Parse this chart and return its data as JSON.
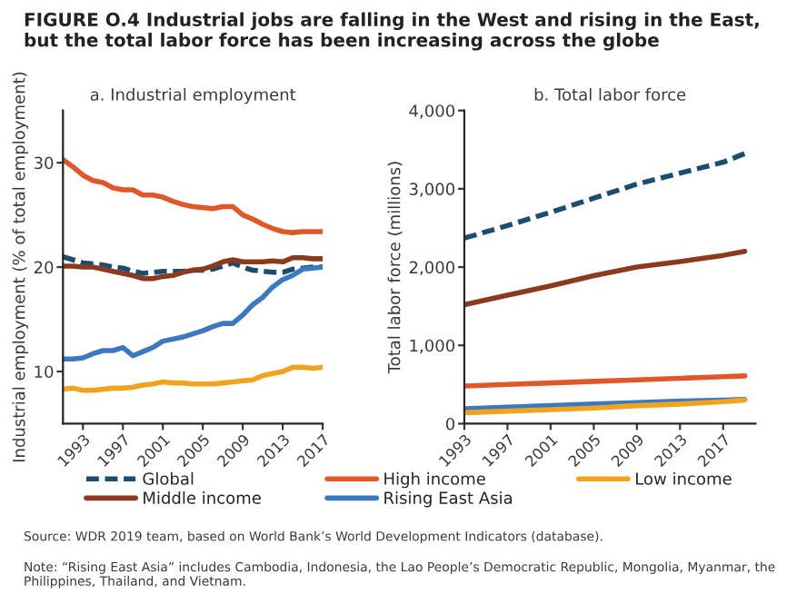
{
  "chart_data": [
    {
      "type": "line",
      "title": "FIGURE O.4 Industrial jobs are falling in the West and rising in the East, but the total labor force has been increasing across the globe",
      "subtitle": "a. Industrial employment",
      "ylabel": "Industrial employment (% of total employment)",
      "x": [
        1991,
        1992,
        1993,
        1994,
        1995,
        1996,
        1997,
        1998,
        1999,
        2000,
        2001,
        2002,
        2003,
        2004,
        2005,
        2006,
        2007,
        2008,
        2009,
        2010,
        2011,
        2012,
        2013,
        2014,
        2015,
        2016,
        2017
      ],
      "xlim": [
        1991,
        2017
      ],
      "xticks": [
        1993,
        1997,
        2001,
        2005,
        2009,
        2013,
        2017
      ],
      "ylim": [
        5,
        35
      ],
      "yticks": [
        10,
        20,
        30
      ],
      "grid": false,
      "legend": "bottom",
      "series": [
        {
          "name": "Global",
          "color": "#1a4e6e",
          "line_style": "dashed",
          "values": [
            21.0,
            20.7,
            20.4,
            20.3,
            20.2,
            20.0,
            19.9,
            19.6,
            19.4,
            19.5,
            19.6,
            19.6,
            19.6,
            19.7,
            19.7,
            19.8,
            20.1,
            20.4,
            20.0,
            19.7,
            19.6,
            19.5,
            19.5,
            19.8,
            19.9,
            20.0,
            20.0
          ]
        },
        {
          "name": "Middle income",
          "color": "#8b3a1e",
          "values": [
            20.1,
            20.1,
            20.0,
            20.0,
            19.8,
            19.6,
            19.4,
            19.2,
            18.9,
            18.9,
            19.1,
            19.2,
            19.5,
            19.7,
            19.8,
            20.1,
            20.5,
            20.7,
            20.5,
            20.5,
            20.5,
            20.6,
            20.5,
            20.9,
            20.9,
            20.8,
            20.8
          ]
        },
        {
          "name": "High income",
          "color": "#e0572a",
          "values": [
            30.3,
            29.6,
            28.8,
            28.3,
            28.1,
            27.6,
            27.4,
            27.4,
            26.9,
            26.9,
            26.7,
            26.3,
            26.0,
            25.8,
            25.7,
            25.6,
            25.8,
            25.8,
            25.0,
            24.6,
            24.1,
            23.7,
            23.4,
            23.3,
            23.4,
            23.4,
            23.4
          ]
        },
        {
          "name": "Rising East Asia",
          "color": "#3b78c2",
          "values": [
            11.2,
            11.2,
            11.3,
            11.7,
            12.0,
            12.0,
            12.3,
            11.5,
            11.9,
            12.3,
            12.9,
            13.1,
            13.3,
            13.6,
            13.9,
            14.3,
            14.6,
            14.6,
            15.4,
            16.4,
            17.1,
            18.1,
            18.8,
            19.2,
            19.8,
            19.9,
            20.0
          ]
        },
        {
          "name": "Low income",
          "color": "#f0a31c",
          "values": [
            8.3,
            8.4,
            8.2,
            8.2,
            8.3,
            8.4,
            8.4,
            8.5,
            8.7,
            8.8,
            9.0,
            8.9,
            8.9,
            8.8,
            8.8,
            8.8,
            8.9,
            9.0,
            9.1,
            9.2,
            9.6,
            9.8,
            10.0,
            10.4,
            10.4,
            10.3,
            10.4
          ]
        }
      ],
      "annotations": [
        "Source: WDR 2019 team, based on World Bank’s World Development Indicators (database).",
        "Note: “Rising East Asia” includes Cambodia, Indonesia, the Lao People’s Democratic Republic, Mongolia, Myanmar, the Philippines, Thailand, and Vietnam."
      ]
    },
    {
      "type": "line",
      "subtitle": "b. Total labor force",
      "ylabel": "Total labor force (millions)",
      "x": [
        1993,
        1997,
        2001,
        2005,
        2009,
        2013,
        2017,
        2019
      ],
      "xlim": [
        1993,
        2020
      ],
      "xticks": [
        1993,
        1997,
        2001,
        2005,
        2009,
        2013,
        2017
      ],
      "ylim": [
        0,
        4000
      ],
      "yticks": [
        {
          "value": 0,
          "label": "0"
        },
        {
          "value": 1000,
          "label": "1,000"
        },
        {
          "value": 2000,
          "label": "2,000"
        },
        {
          "value": 3000,
          "label": "3,000"
        },
        {
          "value": 4000,
          "label": "4,000"
        }
      ],
      "grid": false,
      "series": [
        {
          "color": "#1a4e6e",
          "line_style": "dashed",
          "values": [
            2370,
            2530,
            2700,
            2880,
            3060,
            3200,
            3340,
            3450
          ]
        },
        {
          "color": "#8b3a1e",
          "values": [
            1520,
            1640,
            1760,
            1890,
            2000,
            2070,
            2150,
            2200
          ]
        },
        {
          "color": "#e0572a",
          "values": [
            480,
            500,
            520,
            540,
            560,
            580,
            600,
            610
          ]
        },
        {
          "color": "#3b78c2",
          "values": [
            190,
            210,
            230,
            250,
            270,
            290,
            300,
            310
          ]
        },
        {
          "color": "#f0a31c",
          "values": [
            140,
            160,
            180,
            200,
            230,
            250,
            280,
            300
          ]
        }
      ]
    }
  ]
}
